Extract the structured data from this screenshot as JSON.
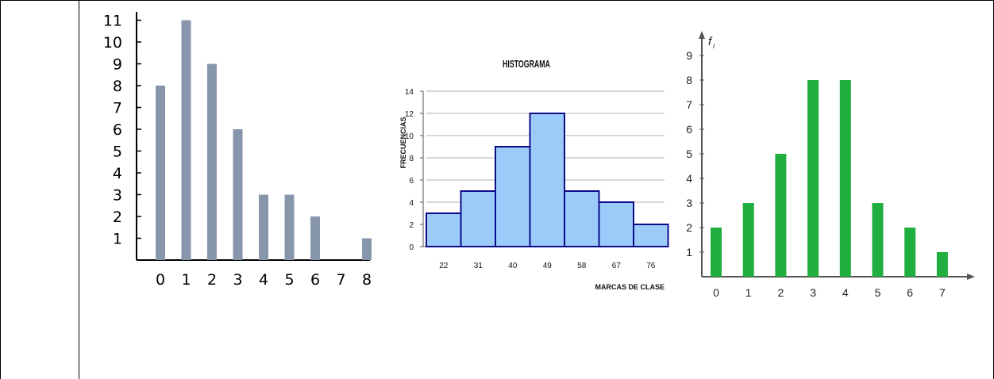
{
  "chart_data": [
    {
      "type": "bar",
      "categories": [
        "0",
        "1",
        "2",
        "3",
        "4",
        "5",
        "6",
        "7",
        "8"
      ],
      "values": [
        8,
        11,
        9,
        6,
        3,
        3,
        2,
        0,
        1
      ],
      "ylim": [
        0,
        11
      ],
      "yticks": [
        "1",
        "2",
        "3",
        "4",
        "5",
        "6",
        "7",
        "8",
        "9",
        "10",
        "11"
      ],
      "grid": false,
      "colors": {
        "bar": "#8896ac",
        "axis": "#000000"
      }
    },
    {
      "type": "bar",
      "title": "HISTOGRAMA",
      "xlabel": "MARCAS DE CLASE",
      "ylabel": "FRECUENCIAS",
      "categories": [
        "22",
        "31",
        "40",
        "49",
        "58",
        "67",
        "76"
      ],
      "values": [
        3,
        5,
        9,
        12,
        5,
        4,
        2
      ],
      "ylim": [
        0,
        14
      ],
      "yticks": [
        "0",
        "2",
        "4",
        "6",
        "8",
        "10",
        "12",
        "14"
      ],
      "grid": true,
      "colors": {
        "bar": "#9dcbf9",
        "edge": "#0b0b8a",
        "grid": "#b0b0b0"
      }
    },
    {
      "type": "bar",
      "ylabel": "f",
      "ylabel_sub": "i",
      "categories": [
        "0",
        "1",
        "2",
        "3",
        "4",
        "5",
        "6",
        "7"
      ],
      "values": [
        2,
        3,
        5,
        8,
        8,
        3,
        2,
        1
      ],
      "ylim": [
        0,
        9
      ],
      "yticks": [
        "1",
        "2",
        "3",
        "4",
        "5",
        "6",
        "7",
        "8",
        "9"
      ],
      "grid": false,
      "colors": {
        "bar": "#20ae3f",
        "axis": "#555555"
      }
    }
  ]
}
